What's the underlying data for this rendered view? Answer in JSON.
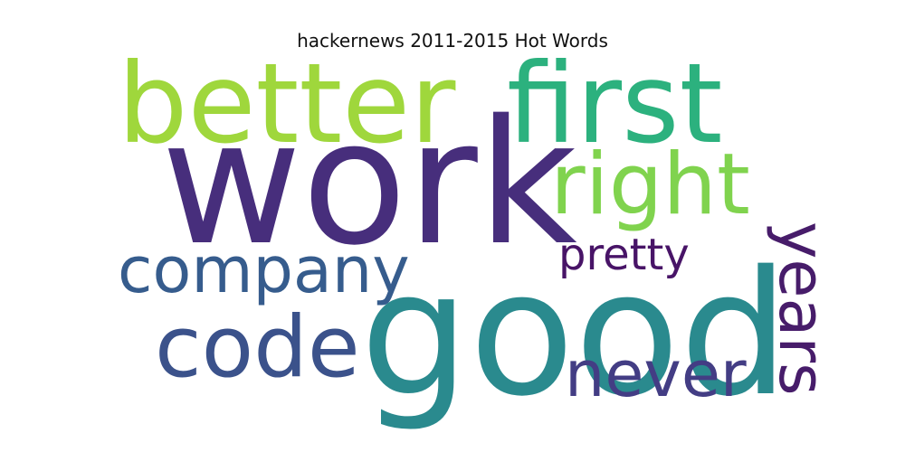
{
  "chart_data": {
    "type": "wordcloud",
    "title": "hackernews 2011-2015 Hot Words",
    "words": [
      {
        "text": "work",
        "color": "#472e7c",
        "orientation": "horizontal"
      },
      {
        "text": "good",
        "color": "#2a8a8e",
        "orientation": "horizontal"
      },
      {
        "text": "better",
        "color": "#9fd73c",
        "orientation": "horizontal"
      },
      {
        "text": "first",
        "color": "#2cb17e",
        "orientation": "horizontal"
      },
      {
        "text": "right",
        "color": "#80d34e",
        "orientation": "horizontal"
      },
      {
        "text": "company",
        "color": "#365c8d",
        "orientation": "horizontal"
      },
      {
        "text": "code",
        "color": "#3b528b",
        "orientation": "horizontal"
      },
      {
        "text": "years",
        "color": "#471c6a",
        "orientation": "vertical"
      },
      {
        "text": "pretty",
        "color": "#481467",
        "orientation": "horizontal"
      },
      {
        "text": "never",
        "color": "#433d84",
        "orientation": "horizontal"
      }
    ]
  }
}
